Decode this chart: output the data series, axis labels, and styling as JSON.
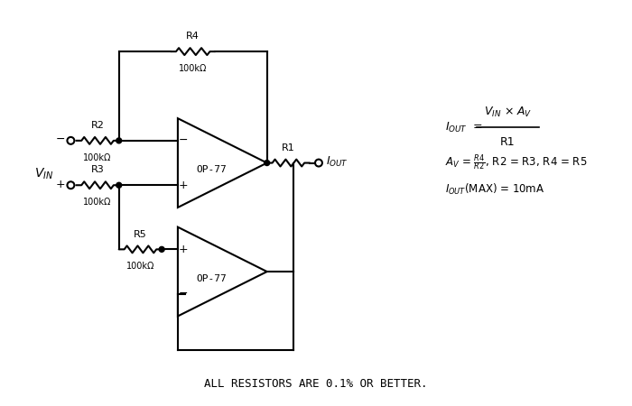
{
  "bg_color": "#ffffff",
  "line_color": "#000000",
  "text_color": "#000000",
  "lw": 1.5,
  "fig_w": 7.0,
  "fig_h": 4.5,
  "bottom_text": "ALL RESISTORS ARE 0.1% OR BETTER.",
  "formula_line1": "$\\mathregular{V_{IN}}$ × $\\mathregular{A_V}$",
  "formula_line2": "R1",
  "formula_eq1": "$\\mathregular{A_V}$ = $\\mathregular{\\frac{R4}{R2}}$, R2 = R3, R4 = R5",
  "formula_eq2": "$\\mathregular{I_{OUT}}$(MAX) = 10mA"
}
